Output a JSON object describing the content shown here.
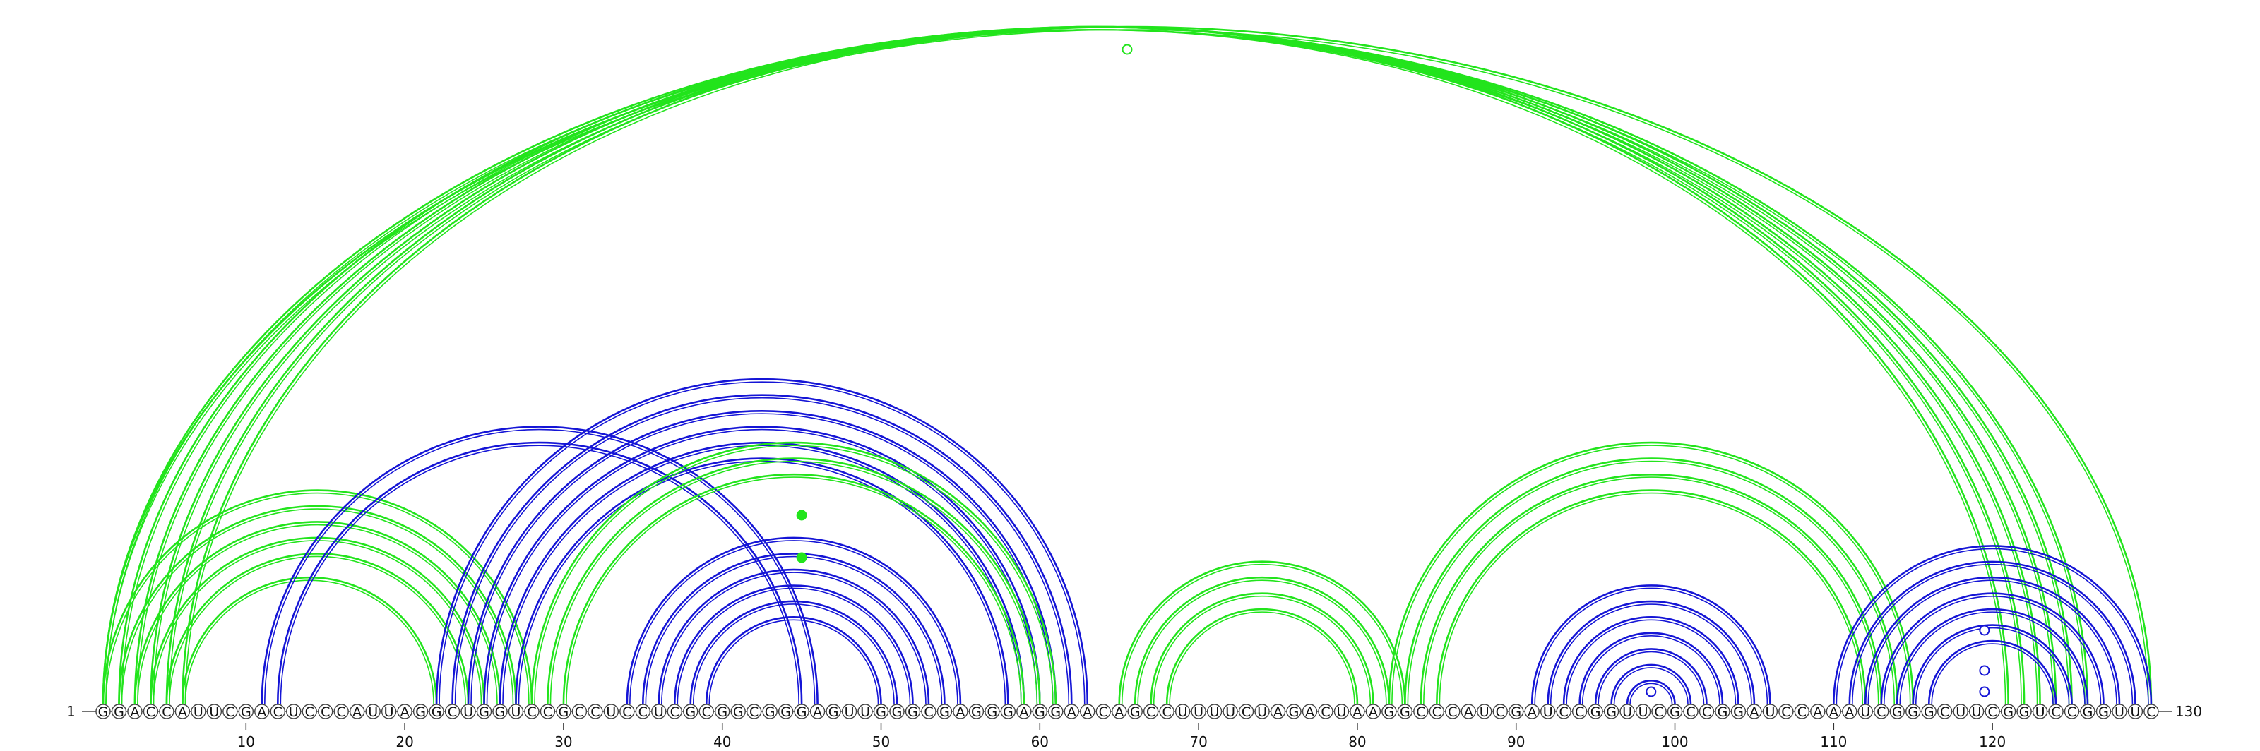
{
  "sequence": "GGACCAUUCGACUCCCAUUAGGCUGGUCCGCCUCCUCGCGGCGGGAGUUGGGCGAGGGAGGAACAGCCUUUUCUAGACUAAGGCCCAUCGAUCCGGUUCGCCGGAUCCAAAUCGGGCUUCGGUCCGGUUC",
  "start_label": "1",
  "end_label": "130",
  "ticks": [
    "10",
    "20",
    "30",
    "40",
    "50",
    "60",
    "70",
    "80",
    "90",
    "100",
    "110",
    "120"
  ],
  "colors": {
    "green": "#22e41c",
    "blue": "#1515d6",
    "background": "#ffffff"
  },
  "arc_groups": [
    {
      "color": "green",
      "pairs": [
        [
          1,
          130
        ],
        [
          1,
          126
        ],
        [
          2,
          125
        ],
        [
          3,
          124
        ],
        [
          4,
          123
        ],
        [
          5,
          122
        ],
        [
          6,
          121
        ]
      ]
    },
    {
      "color": "green",
      "pairs": [
        [
          1,
          28
        ],
        [
          2,
          27
        ],
        [
          3,
          26
        ],
        [
          4,
          25
        ],
        [
          5,
          24
        ],
        [
          6,
          22
        ]
      ]
    },
    {
      "color": "blue",
      "pairs": [
        [
          11,
          46
        ],
        [
          12,
          45
        ],
        [
          22,
          63
        ],
        [
          23,
          62
        ],
        [
          24,
          61
        ],
        [
          25,
          60
        ],
        [
          26,
          59
        ],
        [
          27,
          58
        ]
      ]
    },
    {
      "color": "green",
      "pairs": [
        [
          28,
          61
        ],
        [
          29,
          60
        ],
        [
          30,
          59
        ]
      ]
    },
    {
      "color": "blue",
      "pairs": [
        [
          34,
          55
        ],
        [
          35,
          54
        ],
        [
          36,
          53
        ],
        [
          37,
          52
        ],
        [
          38,
          51
        ],
        [
          39,
          50
        ]
      ]
    },
    {
      "color": "green",
      "pairs": [
        [
          65,
          83
        ],
        [
          66,
          82
        ],
        [
          67,
          81
        ],
        [
          68,
          80
        ]
      ]
    },
    {
      "color": "green",
      "pairs": [
        [
          82,
          115
        ],
        [
          83,
          114
        ],
        [
          84,
          113
        ],
        [
          85,
          112
        ]
      ]
    },
    {
      "color": "blue",
      "pairs": [
        [
          91,
          106
        ],
        [
          92,
          105
        ],
        [
          93,
          104
        ],
        [
          94,
          103
        ],
        [
          95,
          102
        ],
        [
          96,
          101
        ],
        [
          97,
          100
        ]
      ]
    },
    {
      "color": "blue",
      "pairs": [
        [
          110,
          130
        ],
        [
          111,
          129
        ],
        [
          112,
          128
        ],
        [
          113,
          127
        ],
        [
          114,
          126
        ],
        [
          115,
          125
        ],
        [
          116,
          124
        ]
      ]
    }
  ],
  "markers": [
    {
      "pos": 65.5,
      "color": "green",
      "filled": false,
      "level": "outer"
    },
    {
      "pos": 45,
      "color": "green",
      "filled": true,
      "level": "upper"
    },
    {
      "pos": 45,
      "color": "green",
      "filled": true,
      "level": "lower"
    },
    {
      "pos": 98.5,
      "color": "blue",
      "filled": false,
      "level": "inner"
    },
    {
      "pos": 119.5,
      "color": "blue",
      "filled": false,
      "level": "upper"
    },
    {
      "pos": 119.5,
      "color": "blue",
      "filled": false,
      "level": "mid"
    },
    {
      "pos": 119.5,
      "color": "blue",
      "filled": false,
      "level": "inner"
    }
  ]
}
